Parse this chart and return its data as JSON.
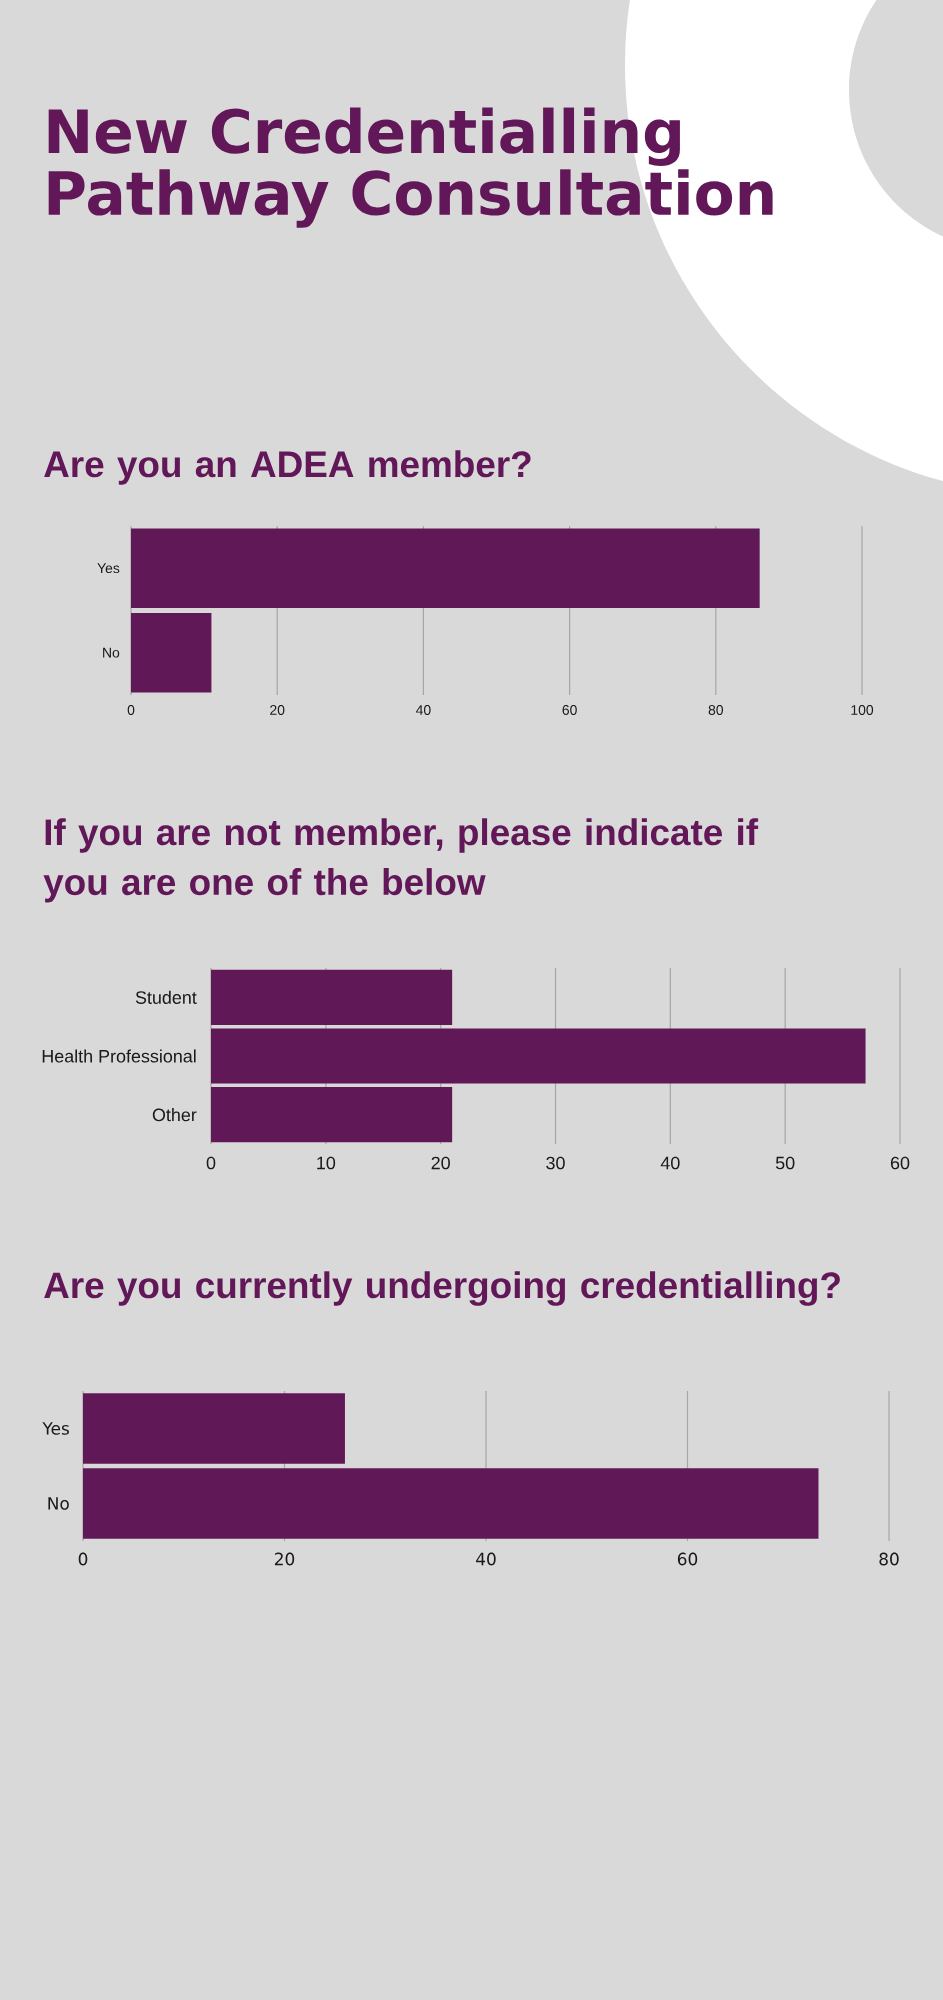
{
  "chart_data": [
    {
      "type": "bar",
      "orientation": "horizontal",
      "title": "New Credentialling Pathway Consultation",
      "subtitle": "Are you an ADEA member?",
      "categories": [
        "Yes",
        "No"
      ],
      "values": [
        86,
        11
      ],
      "color": "#611857",
      "xlim": [
        0,
        100
      ],
      "xticks": [
        0,
        20,
        40,
        60,
        80,
        100
      ],
      "grid": "x"
    },
    {
      "type": "bar",
      "orientation": "horizontal",
      "title": "If you are not member, please indicate if you are one of the below",
      "categories": [
        "Student",
        "Health Professional",
        "Other"
      ],
      "values": [
        21,
        57,
        21
      ],
      "color": "#611857",
      "xlim": [
        0,
        60
      ],
      "xticks": [
        0,
        10,
        20,
        30,
        40,
        50,
        60
      ],
      "grid": "x"
    },
    {
      "type": "bar",
      "orientation": "horizontal",
      "title": "Are you currently undergoing credentialling?",
      "categories": [
        "Yes",
        "No"
      ],
      "values": [
        26,
        73
      ],
      "color": "#611857",
      "xlim": [
        0,
        80
      ],
      "xticks": [
        0,
        20,
        40,
        60,
        80
      ],
      "grid": "x"
    }
  ]
}
